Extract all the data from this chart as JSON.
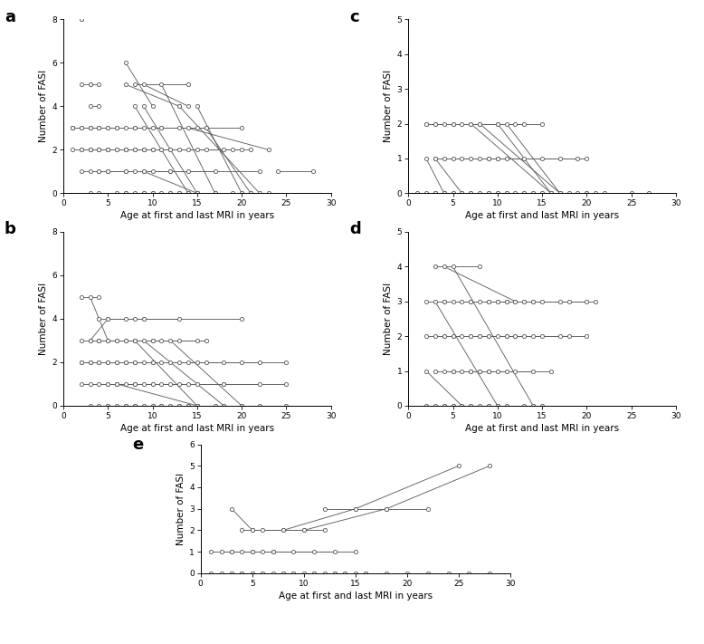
{
  "xlabel": "Age at first and last MRI in years",
  "ylabel": "Number of FASI",
  "panels": {
    "a": {
      "ylim": [
        0,
        8
      ],
      "xlim": [
        0,
        30
      ],
      "yticks": [
        0,
        2,
        4,
        6,
        8
      ],
      "xticks": [
        0,
        5,
        10,
        15,
        20,
        25,
        30
      ],
      "series": [
        [
          2,
          8,
          2,
          8
        ],
        [
          2,
          5,
          3,
          5
        ],
        [
          3,
          5,
          4,
          5
        ],
        [
          3,
          4,
          4,
          4
        ],
        [
          7,
          6,
          10,
          4
        ],
        [
          7,
          5,
          13,
          4
        ],
        [
          8,
          5,
          14,
          5
        ],
        [
          9,
          5,
          14,
          4
        ],
        [
          1,
          3,
          2,
          3
        ],
        [
          1,
          3,
          3,
          3
        ],
        [
          1,
          3,
          4,
          3
        ],
        [
          2,
          3,
          5,
          3
        ],
        [
          3,
          3,
          6,
          3
        ],
        [
          3,
          3,
          7,
          3
        ],
        [
          4,
          3,
          8,
          3
        ],
        [
          4,
          3,
          9,
          3
        ],
        [
          5,
          3,
          11,
          3
        ],
        [
          6,
          3,
          13,
          3
        ],
        [
          8,
          3,
          15,
          3
        ],
        [
          10,
          3,
          16,
          3
        ],
        [
          11,
          3,
          20,
          3
        ],
        [
          14,
          3,
          23,
          2
        ],
        [
          1,
          2,
          3,
          2
        ],
        [
          2,
          2,
          4,
          2
        ],
        [
          2,
          2,
          5,
          2
        ],
        [
          3,
          2,
          6,
          2
        ],
        [
          3,
          2,
          7,
          2
        ],
        [
          4,
          2,
          8,
          2
        ],
        [
          4,
          2,
          9,
          2
        ],
        [
          5,
          2,
          10,
          2
        ],
        [
          5,
          2,
          11,
          2
        ],
        [
          6,
          2,
          12,
          2
        ],
        [
          7,
          2,
          13,
          2
        ],
        [
          7,
          2,
          14,
          2
        ],
        [
          8,
          2,
          15,
          2
        ],
        [
          9,
          2,
          16,
          2
        ],
        [
          9,
          2,
          18,
          2
        ],
        [
          10,
          2,
          19,
          2
        ],
        [
          11,
          2,
          20,
          2
        ],
        [
          12,
          2,
          21,
          2
        ],
        [
          15,
          4,
          20,
          0
        ],
        [
          16,
          3,
          21,
          0
        ],
        [
          13,
          4,
          22,
          0
        ],
        [
          11,
          5,
          17,
          0
        ],
        [
          9,
          4,
          15,
          0
        ],
        [
          8,
          4,
          14,
          0
        ],
        [
          2,
          1,
          4,
          1
        ],
        [
          3,
          1,
          5,
          1
        ],
        [
          4,
          1,
          7,
          1
        ],
        [
          5,
          1,
          9,
          1
        ],
        [
          7,
          1,
          12,
          1
        ],
        [
          8,
          1,
          14,
          1
        ],
        [
          9,
          1,
          15,
          0
        ],
        [
          10,
          1,
          17,
          1
        ],
        [
          12,
          1,
          22,
          1
        ],
        [
          24,
          1,
          28,
          1
        ],
        [
          3,
          0,
          7,
          0
        ],
        [
          4,
          0,
          9,
          0
        ],
        [
          6,
          0,
          10,
          0
        ],
        [
          7,
          0,
          12,
          0
        ],
        [
          8,
          0,
          13,
          0
        ],
        [
          9,
          0,
          14,
          0
        ],
        [
          10,
          0,
          15,
          0
        ],
        [
          11,
          0,
          17,
          0
        ],
        [
          12,
          0,
          19,
          0
        ],
        [
          13,
          0,
          20,
          0
        ],
        [
          14,
          0,
          21,
          0
        ],
        [
          15,
          0,
          23,
          0
        ]
      ]
    },
    "b": {
      "ylim": [
        0,
        8
      ],
      "xlim": [
        0,
        30
      ],
      "yticks": [
        0,
        2,
        4,
        6,
        8
      ],
      "xticks": [
        0,
        5,
        10,
        15,
        20,
        25,
        30
      ],
      "series": [
        [
          2,
          5,
          4,
          5
        ],
        [
          3,
          5,
          5,
          3
        ],
        [
          3,
          3,
          5,
          4
        ],
        [
          4,
          4,
          8,
          4
        ],
        [
          5,
          4,
          9,
          4
        ],
        [
          7,
          4,
          13,
          4
        ],
        [
          9,
          4,
          20,
          4
        ],
        [
          2,
          3,
          4,
          3
        ],
        [
          3,
          3,
          6,
          3
        ],
        [
          4,
          3,
          7,
          3
        ],
        [
          4,
          3,
          8,
          3
        ],
        [
          5,
          3,
          10,
          3
        ],
        [
          6,
          3,
          11,
          3
        ],
        [
          7,
          3,
          13,
          3
        ],
        [
          8,
          3,
          15,
          3
        ],
        [
          10,
          3,
          16,
          3
        ],
        [
          2,
          2,
          4,
          2
        ],
        [
          2,
          2,
          5,
          2
        ],
        [
          3,
          2,
          6,
          2
        ],
        [
          3,
          2,
          7,
          2
        ],
        [
          4,
          2,
          8,
          2
        ],
        [
          4,
          2,
          10,
          2
        ],
        [
          5,
          2,
          11,
          2
        ],
        [
          6,
          2,
          13,
          2
        ],
        [
          7,
          2,
          15,
          2
        ],
        [
          8,
          2,
          16,
          2
        ],
        [
          9,
          2,
          18,
          2
        ],
        [
          10,
          2,
          20,
          2
        ],
        [
          12,
          2,
          22,
          2
        ],
        [
          14,
          2,
          25,
          2
        ],
        [
          2,
          1,
          5,
          1
        ],
        [
          3,
          1,
          6,
          1
        ],
        [
          4,
          1,
          8,
          1
        ],
        [
          5,
          1,
          10,
          1
        ],
        [
          6,
          1,
          11,
          1
        ],
        [
          7,
          1,
          13,
          1
        ],
        [
          8,
          1,
          14,
          1
        ],
        [
          9,
          1,
          15,
          1
        ],
        [
          10,
          1,
          18,
          1
        ],
        [
          12,
          1,
          22,
          1
        ],
        [
          18,
          1,
          25,
          1
        ],
        [
          3,
          0,
          5,
          0
        ],
        [
          4,
          0,
          7,
          0
        ],
        [
          5,
          0,
          8,
          0
        ],
        [
          6,
          0,
          10,
          0
        ],
        [
          7,
          0,
          11,
          0
        ],
        [
          8,
          0,
          13,
          0
        ],
        [
          9,
          0,
          14,
          0
        ],
        [
          10,
          0,
          15,
          0
        ],
        [
          11,
          0,
          17,
          0
        ],
        [
          12,
          0,
          18,
          0
        ],
        [
          13,
          0,
          20,
          0
        ],
        [
          14,
          0,
          22,
          0
        ],
        [
          15,
          0,
          25,
          0
        ],
        [
          8,
          3,
          15,
          0
        ],
        [
          9,
          3,
          18,
          0
        ],
        [
          6,
          1,
          15,
          0
        ],
        [
          12,
          3,
          20,
          0
        ]
      ]
    },
    "c": {
      "ylim": [
        0,
        5
      ],
      "xlim": [
        0,
        30
      ],
      "yticks": [
        0,
        1,
        2,
        3,
        4,
        5
      ],
      "xticks": [
        0,
        5,
        10,
        15,
        20,
        25,
        30
      ],
      "series": [
        [
          2,
          2,
          5,
          2
        ],
        [
          2,
          2,
          7,
          2
        ],
        [
          3,
          2,
          8,
          2
        ],
        [
          3,
          2,
          10,
          2
        ],
        [
          4,
          2,
          12,
          2
        ],
        [
          5,
          2,
          13,
          2
        ],
        [
          6,
          2,
          15,
          2
        ],
        [
          7,
          2,
          16,
          0
        ],
        [
          8,
          2,
          17,
          0
        ],
        [
          10,
          2,
          16,
          0
        ],
        [
          11,
          2,
          17,
          0
        ],
        [
          2,
          1,
          4,
          0
        ],
        [
          3,
          1,
          6,
          0
        ],
        [
          3,
          1,
          9,
          1
        ],
        [
          4,
          1,
          10,
          1
        ],
        [
          5,
          1,
          11,
          1
        ],
        [
          6,
          1,
          13,
          1
        ],
        [
          7,
          1,
          15,
          1
        ],
        [
          8,
          1,
          17,
          1
        ],
        [
          9,
          1,
          19,
          1
        ],
        [
          10,
          1,
          20,
          1
        ],
        [
          1,
          0,
          3,
          0
        ],
        [
          2,
          0,
          4,
          0
        ],
        [
          3,
          0,
          5,
          0
        ],
        [
          4,
          0,
          6,
          0
        ],
        [
          5,
          0,
          7,
          0
        ],
        [
          6,
          0,
          9,
          0
        ],
        [
          7,
          0,
          10,
          0
        ],
        [
          8,
          0,
          11,
          0
        ],
        [
          9,
          0,
          13,
          0
        ],
        [
          10,
          0,
          14,
          0
        ],
        [
          11,
          0,
          15,
          0
        ],
        [
          12,
          0,
          16,
          0
        ],
        [
          13,
          0,
          17,
          0
        ],
        [
          14,
          0,
          18,
          0
        ],
        [
          15,
          0,
          20,
          0
        ],
        [
          16,
          0,
          21,
          0
        ],
        [
          17,
          0,
          22,
          0
        ],
        [
          19,
          0,
          25,
          0
        ],
        [
          20,
          0,
          27,
          0
        ]
      ]
    },
    "d": {
      "ylim": [
        0,
        5
      ],
      "xlim": [
        0,
        30
      ],
      "yticks": [
        0,
        1,
        2,
        3,
        4,
        5
      ],
      "xticks": [
        0,
        5,
        10,
        15,
        20,
        25,
        30
      ],
      "series": [
        [
          3,
          4,
          8,
          4
        ],
        [
          2,
          3,
          4,
          3
        ],
        [
          4,
          3,
          7,
          3
        ],
        [
          5,
          3,
          9,
          3
        ],
        [
          6,
          3,
          10,
          3
        ],
        [
          7,
          3,
          11,
          3
        ],
        [
          8,
          3,
          13,
          3
        ],
        [
          9,
          3,
          14,
          3
        ],
        [
          10,
          3,
          15,
          3
        ],
        [
          11,
          3,
          17,
          3
        ],
        [
          12,
          3,
          18,
          3
        ],
        [
          13,
          3,
          20,
          3
        ],
        [
          14,
          3,
          21,
          3
        ],
        [
          2,
          2,
          4,
          2
        ],
        [
          3,
          2,
          5,
          2
        ],
        [
          4,
          2,
          7,
          2
        ],
        [
          5,
          2,
          8,
          2
        ],
        [
          6,
          2,
          9,
          2
        ],
        [
          7,
          2,
          11,
          2
        ],
        [
          8,
          2,
          12,
          2
        ],
        [
          9,
          2,
          14,
          2
        ],
        [
          10,
          2,
          15,
          2
        ],
        [
          11,
          2,
          17,
          2
        ],
        [
          12,
          2,
          18,
          2
        ],
        [
          13,
          2,
          20,
          2
        ],
        [
          3,
          1,
          5,
          1
        ],
        [
          4,
          1,
          7,
          1
        ],
        [
          5,
          1,
          8,
          1
        ],
        [
          6,
          1,
          9,
          1
        ],
        [
          7,
          1,
          11,
          1
        ],
        [
          8,
          1,
          12,
          1
        ],
        [
          9,
          1,
          14,
          1
        ],
        [
          10,
          1,
          16,
          1
        ],
        [
          2,
          0,
          4,
          0
        ],
        [
          3,
          0,
          5,
          0
        ],
        [
          4,
          0,
          7,
          0
        ],
        [
          5,
          0,
          9,
          0
        ],
        [
          6,
          0,
          10,
          0
        ],
        [
          7,
          0,
          11,
          0
        ],
        [
          8,
          0,
          13,
          0
        ],
        [
          9,
          0,
          14,
          0
        ],
        [
          10,
          0,
          15,
          0
        ],
        [
          4,
          4,
          12,
          3
        ],
        [
          5,
          4,
          14,
          0
        ],
        [
          3,
          3,
          10,
          0
        ],
        [
          2,
          1,
          6,
          0
        ]
      ]
    },
    "e": {
      "ylim": [
        0,
        6
      ],
      "xlim": [
        0,
        30
      ],
      "yticks": [
        0,
        1,
        2,
        3,
        4,
        5,
        6
      ],
      "xticks": [
        0,
        5,
        10,
        15,
        20,
        25,
        30
      ],
      "series": [
        [
          3,
          3,
          5,
          2
        ],
        [
          4,
          2,
          8,
          2
        ],
        [
          5,
          2,
          10,
          2
        ],
        [
          6,
          2,
          12,
          2
        ],
        [
          8,
          2,
          15,
          3
        ],
        [
          10,
          2,
          18,
          3
        ],
        [
          12,
          3,
          22,
          3
        ],
        [
          15,
          3,
          25,
          5
        ],
        [
          18,
          3,
          28,
          5
        ],
        [
          1,
          1,
          3,
          1
        ],
        [
          2,
          1,
          5,
          1
        ],
        [
          3,
          1,
          7,
          1
        ],
        [
          4,
          1,
          9,
          1
        ],
        [
          5,
          1,
          11,
          1
        ],
        [
          6,
          1,
          13,
          1
        ],
        [
          7,
          1,
          15,
          1
        ],
        [
          1,
          0,
          3,
          0
        ],
        [
          2,
          0,
          4,
          0
        ],
        [
          3,
          0,
          5,
          0
        ],
        [
          4,
          0,
          6,
          0
        ],
        [
          5,
          0,
          8,
          0
        ],
        [
          6,
          0,
          9,
          0
        ],
        [
          7,
          0,
          11,
          0
        ],
        [
          8,
          0,
          13,
          0
        ],
        [
          9,
          0,
          14,
          0
        ],
        [
          10,
          0,
          16,
          0
        ],
        [
          11,
          0,
          18,
          0
        ],
        [
          12,
          0,
          20,
          0
        ],
        [
          13,
          0,
          22,
          0
        ],
        [
          14,
          0,
          24,
          0
        ],
        [
          15,
          0,
          26,
          0
        ],
        [
          16,
          0,
          28,
          0
        ]
      ]
    }
  }
}
